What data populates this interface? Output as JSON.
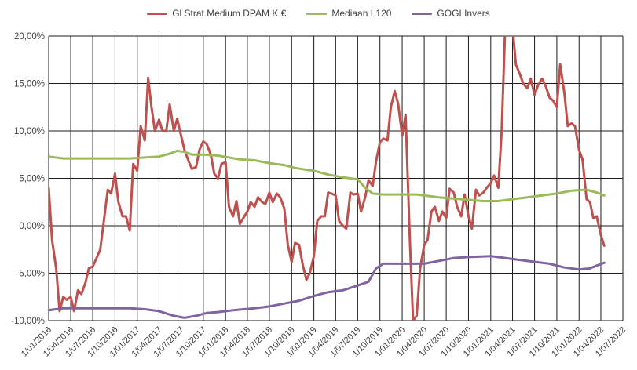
{
  "chart_data": {
    "type": "line",
    "title": "",
    "xlabel": "",
    "ylabel": "",
    "ylim": [
      -10,
      20
    ],
    "yticks": [
      -10,
      -5,
      0,
      5,
      10,
      15,
      20
    ],
    "ytick_labels": [
      "-10,00%",
      "-5,00%",
      "0,00%",
      "5,00%",
      "10,00%",
      "15,00%",
      "20,00%"
    ],
    "xlim": [
      "2016-01-01",
      "2022-07-01"
    ],
    "xtick_labels": [
      "1/01/2016",
      "1/04/2016",
      "1/07/2016",
      "1/10/2016",
      "1/01/2017",
      "1/04/2017",
      "1/07/2017",
      "1/10/2017",
      "1/01/2018",
      "1/04/2018",
      "1/07/2018",
      "1/10/2018",
      "1/01/2019",
      "1/04/2019",
      "1/07/2019",
      "1/10/2019",
      "1/01/2020",
      "1/04/2020",
      "1/07/2020",
      "1/10/2020",
      "1/01/2021",
      "1/04/2021",
      "1/07/2021",
      "1/10/2021",
      "1/01/2022",
      "1/04/2022",
      "1/07/2022"
    ],
    "xticks": [
      "2016-01-01",
      "2016-04-01",
      "2016-07-01",
      "2016-10-01",
      "2017-01-01",
      "2017-04-01",
      "2017-07-01",
      "2017-10-01",
      "2018-01-01",
      "2018-04-01",
      "2018-07-01",
      "2018-10-01",
      "2019-01-01",
      "2019-04-01",
      "2019-07-01",
      "2019-10-01",
      "2020-01-01",
      "2020-04-01",
      "2020-07-01",
      "2020-10-01",
      "2021-01-01",
      "2021-04-01",
      "2021-07-01",
      "2021-10-01",
      "2022-01-01",
      "2022-04-01",
      "2022-07-01"
    ],
    "grid": "vertical",
    "legend_position": "top",
    "series": [
      {
        "name": "Gl Strat Medium DPAM K €",
        "color": "#c0504d",
        "points": [
          [
            "2016-01-01",
            4.0
          ],
          [
            "2016-01-15",
            -1.5
          ],
          [
            "2016-02-01",
            -4.5
          ],
          [
            "2016-02-15",
            -9.0
          ],
          [
            "2016-03-01",
            -7.5
          ],
          [
            "2016-03-15",
            -7.8
          ],
          [
            "2016-04-01",
            -7.5
          ],
          [
            "2016-04-15",
            -9.0
          ],
          [
            "2016-05-01",
            -6.8
          ],
          [
            "2016-05-15",
            -7.2
          ],
          [
            "2016-06-01",
            -6.0
          ],
          [
            "2016-06-15",
            -4.5
          ],
          [
            "2016-07-01",
            -4.3
          ],
          [
            "2016-07-15",
            -3.5
          ],
          [
            "2016-08-01",
            -2.5
          ],
          [
            "2016-08-15",
            0.3
          ],
          [
            "2016-09-01",
            3.8
          ],
          [
            "2016-09-15",
            3.4
          ],
          [
            "2016-10-01",
            5.5
          ],
          [
            "2016-10-15",
            2.5
          ],
          [
            "2016-11-01",
            1.0
          ],
          [
            "2016-11-15",
            1.0
          ],
          [
            "2016-12-01",
            -0.5
          ],
          [
            "2016-12-15",
            6.5
          ],
          [
            "2017-01-01",
            5.8
          ],
          [
            "2017-01-15",
            10.5
          ],
          [
            "2017-02-01",
            9.0
          ],
          [
            "2017-02-15",
            15.6
          ],
          [
            "2017-03-01",
            12.5
          ],
          [
            "2017-03-15",
            10.0
          ],
          [
            "2017-04-01",
            11.2
          ],
          [
            "2017-04-15",
            10.0
          ],
          [
            "2017-05-01",
            10.0
          ],
          [
            "2017-05-15",
            12.8
          ],
          [
            "2017-06-01",
            10.0
          ],
          [
            "2017-06-15",
            11.3
          ],
          [
            "2017-07-01",
            9.5
          ],
          [
            "2017-07-15",
            8.0
          ],
          [
            "2017-08-01",
            6.8
          ],
          [
            "2017-08-15",
            6.0
          ],
          [
            "2017-09-01",
            6.2
          ],
          [
            "2017-09-15",
            8.0
          ],
          [
            "2017-10-01",
            8.9
          ],
          [
            "2017-10-15",
            8.6
          ],
          [
            "2017-11-01",
            7.5
          ],
          [
            "2017-11-15",
            5.5
          ],
          [
            "2017-12-01",
            5.0
          ],
          [
            "2017-12-15",
            6.5
          ],
          [
            "2018-01-01",
            6.7
          ],
          [
            "2018-01-15",
            2.0
          ],
          [
            "2018-02-01",
            1.0
          ],
          [
            "2018-02-15",
            2.6
          ],
          [
            "2018-03-01",
            0.2
          ],
          [
            "2018-03-15",
            0.8
          ],
          [
            "2018-04-01",
            1.5
          ],
          [
            "2018-04-15",
            2.5
          ],
          [
            "2018-05-01",
            2.0
          ],
          [
            "2018-05-15",
            3.0
          ],
          [
            "2018-06-01",
            2.5
          ],
          [
            "2018-06-15",
            2.3
          ],
          [
            "2018-07-01",
            3.5
          ],
          [
            "2018-07-15",
            2.5
          ],
          [
            "2018-08-01",
            3.4
          ],
          [
            "2018-08-15",
            3.0
          ],
          [
            "2018-09-01",
            1.8
          ],
          [
            "2018-09-15",
            -2.0
          ],
          [
            "2018-10-01",
            -3.8
          ],
          [
            "2018-10-15",
            -1.8
          ],
          [
            "2018-11-01",
            -2.0
          ],
          [
            "2018-11-15",
            -4.0
          ],
          [
            "2018-12-01",
            -5.7
          ],
          [
            "2018-12-15",
            -5.0
          ],
          [
            "2019-01-01",
            -3.2
          ],
          [
            "2019-01-15",
            0.5
          ],
          [
            "2019-02-01",
            1.0
          ],
          [
            "2019-02-15",
            1.0
          ],
          [
            "2019-03-01",
            3.5
          ],
          [
            "2019-03-15",
            3.4
          ],
          [
            "2019-04-01",
            3.2
          ],
          [
            "2019-04-15",
            0.5
          ],
          [
            "2019-05-01",
            0.0
          ],
          [
            "2019-05-15",
            -0.3
          ],
          [
            "2019-06-01",
            3.5
          ],
          [
            "2019-06-15",
            3.3
          ],
          [
            "2019-07-01",
            3.4
          ],
          [
            "2019-07-15",
            1.5
          ],
          [
            "2019-08-01",
            3.0
          ],
          [
            "2019-08-15",
            4.8
          ],
          [
            "2019-09-01",
            4.2
          ],
          [
            "2019-09-15",
            6.8
          ],
          [
            "2019-10-01",
            8.8
          ],
          [
            "2019-10-15",
            9.2
          ],
          [
            "2019-11-01",
            9.0
          ],
          [
            "2019-11-15",
            12.5
          ],
          [
            "2019-12-01",
            14.2
          ],
          [
            "2019-12-15",
            12.9
          ],
          [
            "2020-01-01",
            9.5
          ],
          [
            "2020-01-15",
            11.7
          ],
          [
            "2020-02-01",
            -1.0
          ],
          [
            "2020-02-15",
            -10.0
          ],
          [
            "2020-03-01",
            -9.5
          ],
          [
            "2020-03-15",
            -4.5
          ],
          [
            "2020-04-01",
            -2.0
          ],
          [
            "2020-04-15",
            -1.5
          ],
          [
            "2020-05-01",
            1.5
          ],
          [
            "2020-05-15",
            2.0
          ],
          [
            "2020-06-01",
            0.5
          ],
          [
            "2020-06-15",
            1.5
          ],
          [
            "2020-07-01",
            0.8
          ],
          [
            "2020-07-15",
            3.9
          ],
          [
            "2020-08-01",
            3.5
          ],
          [
            "2020-08-15",
            2.0
          ],
          [
            "2020-09-01",
            1.0
          ],
          [
            "2020-09-15",
            3.3
          ],
          [
            "2020-10-01",
            1.0
          ],
          [
            "2020-10-15",
            -0.3
          ],
          [
            "2020-11-01",
            3.8
          ],
          [
            "2020-11-15",
            3.2
          ],
          [
            "2020-12-01",
            3.5
          ],
          [
            "2020-12-15",
            4.0
          ],
          [
            "2021-01-01",
            4.5
          ],
          [
            "2021-01-15",
            5.3
          ],
          [
            "2021-02-01",
            4.0
          ],
          [
            "2021-02-15",
            10.0
          ],
          [
            "2021-03-01",
            20.5
          ],
          [
            "2021-03-15",
            22.0
          ],
          [
            "2021-04-01",
            21.0
          ],
          [
            "2021-04-15",
            17.0
          ],
          [
            "2021-05-01",
            16.0
          ],
          [
            "2021-05-15",
            15.0
          ],
          [
            "2021-06-01",
            14.5
          ],
          [
            "2021-06-15",
            15.5
          ],
          [
            "2021-07-01",
            13.8
          ],
          [
            "2021-07-15",
            14.8
          ],
          [
            "2021-08-01",
            15.5
          ],
          [
            "2021-08-15",
            14.8
          ],
          [
            "2021-09-01",
            13.5
          ],
          [
            "2021-09-15",
            13.2
          ],
          [
            "2021-10-01",
            12.5
          ],
          [
            "2021-10-15",
            17.0
          ],
          [
            "2021-11-01",
            14.0
          ],
          [
            "2021-11-15",
            10.5
          ],
          [
            "2021-12-01",
            10.8
          ],
          [
            "2021-12-15",
            10.5
          ],
          [
            "2022-01-01",
            8.0
          ],
          [
            "2022-01-15",
            7.0
          ],
          [
            "2022-02-01",
            2.8
          ],
          [
            "2022-02-15",
            2.5
          ],
          [
            "2022-03-01",
            0.8
          ],
          [
            "2022-03-15",
            1.0
          ],
          [
            "2022-04-01",
            -1.0
          ],
          [
            "2022-04-15",
            -2.1
          ]
        ]
      },
      {
        "name": "Mediaan L120",
        "color": "#9bbb59",
        "points": [
          [
            "2016-01-01",
            7.3
          ],
          [
            "2016-03-01",
            7.1
          ],
          [
            "2016-06-01",
            7.1
          ],
          [
            "2016-09-01",
            7.1
          ],
          [
            "2016-12-01",
            7.1
          ],
          [
            "2017-02-01",
            7.2
          ],
          [
            "2017-04-01",
            7.3
          ],
          [
            "2017-05-15",
            7.6
          ],
          [
            "2017-06-15",
            7.9
          ],
          [
            "2017-07-15",
            7.8
          ],
          [
            "2017-08-15",
            7.5
          ],
          [
            "2017-10-01",
            7.5
          ],
          [
            "2017-12-01",
            7.4
          ],
          [
            "2018-01-15",
            7.2
          ],
          [
            "2018-03-01",
            7.0
          ],
          [
            "2018-05-01",
            6.9
          ],
          [
            "2018-07-01",
            6.6
          ],
          [
            "2018-09-01",
            6.4
          ],
          [
            "2018-10-15",
            6.1
          ],
          [
            "2018-12-01",
            5.9
          ],
          [
            "2019-01-01",
            5.8
          ],
          [
            "2019-03-01",
            5.4
          ],
          [
            "2019-05-01",
            5.1
          ],
          [
            "2019-07-01",
            4.9
          ],
          [
            "2019-08-01",
            4.0
          ],
          [
            "2019-09-01",
            3.4
          ],
          [
            "2019-10-15",
            3.3
          ],
          [
            "2019-12-01",
            3.3
          ],
          [
            "2020-03-01",
            3.3
          ],
          [
            "2020-06-01",
            3.0
          ],
          [
            "2020-09-01",
            2.8
          ],
          [
            "2020-12-01",
            2.6
          ],
          [
            "2021-02-01",
            2.6
          ],
          [
            "2021-04-01",
            2.8
          ],
          [
            "2021-06-01",
            3.0
          ],
          [
            "2021-08-01",
            3.2
          ],
          [
            "2021-10-01",
            3.4
          ],
          [
            "2021-12-01",
            3.7
          ],
          [
            "2022-02-01",
            3.8
          ],
          [
            "2022-03-15",
            3.5
          ],
          [
            "2022-04-15",
            3.2
          ]
        ]
      },
      {
        "name": "GOGI Invers",
        "color": "#8064a2",
        "points": [
          [
            "2016-01-01",
            -8.9
          ],
          [
            "2016-03-01",
            -8.7
          ],
          [
            "2016-06-01",
            -8.7
          ],
          [
            "2016-09-01",
            -8.7
          ],
          [
            "2016-12-01",
            -8.7
          ],
          [
            "2017-02-01",
            -8.8
          ],
          [
            "2017-04-01",
            -9.0
          ],
          [
            "2017-06-01",
            -9.5
          ],
          [
            "2017-07-15",
            -9.7
          ],
          [
            "2017-09-01",
            -9.5
          ],
          [
            "2017-10-15",
            -9.2
          ],
          [
            "2017-12-01",
            -9.1
          ],
          [
            "2018-02-01",
            -8.9
          ],
          [
            "2018-05-01",
            -8.7
          ],
          [
            "2018-07-01",
            -8.5
          ],
          [
            "2018-09-01",
            -8.2
          ],
          [
            "2018-11-01",
            -7.9
          ],
          [
            "2019-01-01",
            -7.4
          ],
          [
            "2019-03-01",
            -7.0
          ],
          [
            "2019-05-01",
            -6.8
          ],
          [
            "2019-07-01",
            -6.3
          ],
          [
            "2019-08-15",
            -5.9
          ],
          [
            "2019-09-15",
            -4.5
          ],
          [
            "2019-10-15",
            -4.0
          ],
          [
            "2020-01-01",
            -4.0
          ],
          [
            "2020-04-01",
            -4.0
          ],
          [
            "2020-06-01",
            -3.7
          ],
          [
            "2020-08-01",
            -3.4
          ],
          [
            "2020-10-01",
            -3.3
          ],
          [
            "2021-01-01",
            -3.2
          ],
          [
            "2021-03-01",
            -3.4
          ],
          [
            "2021-05-01",
            -3.6
          ],
          [
            "2021-07-01",
            -3.8
          ],
          [
            "2021-09-01",
            -4.0
          ],
          [
            "2021-11-01",
            -4.4
          ],
          [
            "2022-01-01",
            -4.6
          ],
          [
            "2022-02-15",
            -4.5
          ],
          [
            "2022-03-15",
            -4.2
          ],
          [
            "2022-04-15",
            -3.9
          ]
        ]
      }
    ]
  }
}
